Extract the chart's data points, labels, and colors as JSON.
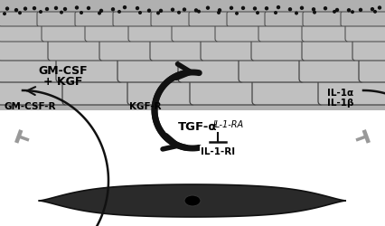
{
  "bg_color": "#ffffff",
  "text_color": "#000000",
  "cell_bg_color": "#b0b0b0",
  "cell_face_color": "#c0c0c0",
  "cell_edge_color": "#444444",
  "dot_color": "#111111",
  "arrow_color": "#111111",
  "tbar_color": "#999999",
  "figsize": [
    4.27,
    2.51
  ],
  "dpi": 100,
  "labels": {
    "GM_CSF_R": "GM-CSF-R",
    "KGF_R": "KGF-R",
    "TGF_a": "TGF-α",
    "IL1a": "IL-1α",
    "IL1b": "IL-1β",
    "GM_CSF": "GM-CSF",
    "KGF": "+ KGF",
    "IL1_RA": "IL-1-RA",
    "IL1_RI": "IL-1-RI"
  }
}
